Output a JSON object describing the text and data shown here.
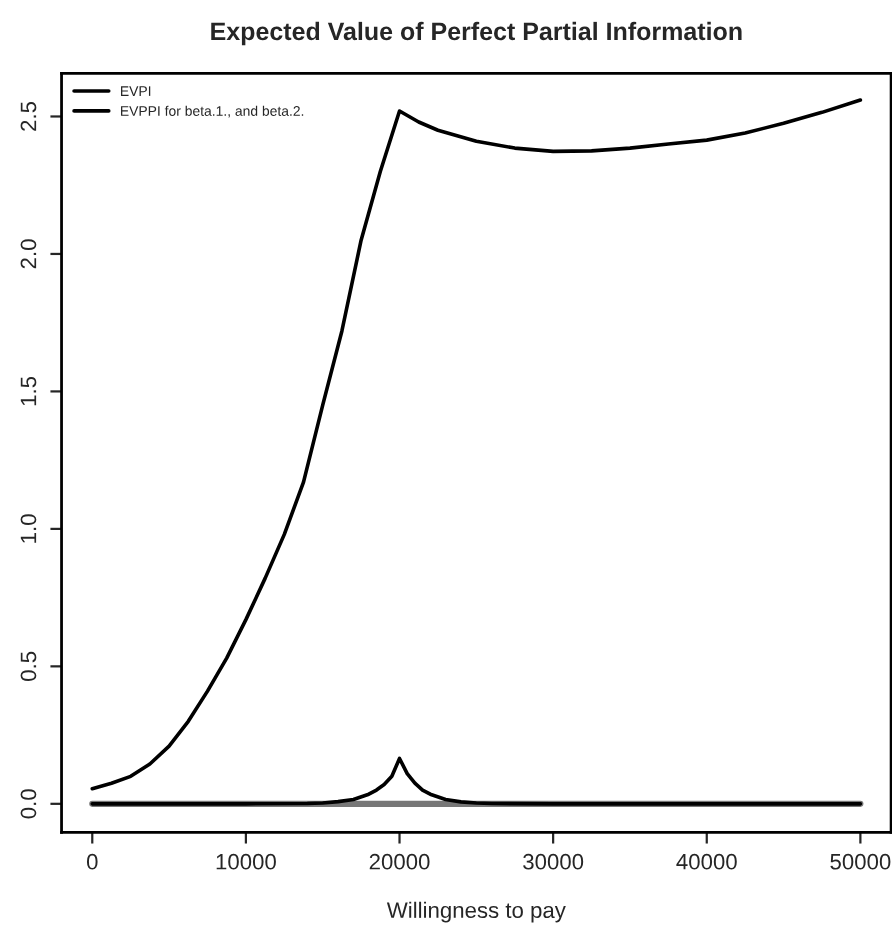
{
  "chart_data": {
    "type": "line",
    "title": "Expected Value of Perfect Partial Information",
    "xlabel": "Willingness to pay",
    "xlim": [
      -2000,
      52000
    ],
    "xticks": [
      0,
      10000,
      20000,
      30000,
      40000,
      50000
    ],
    "ylim": [
      -0.104,
      2.657
    ],
    "yticks": [
      {
        "value": 0,
        "label": "0.0"
      },
      {
        "value": 0.5,
        "label": "0.5"
      },
      {
        "value": 1,
        "label": "1.0"
      },
      {
        "value": 1.5,
        "label": "1.5"
      },
      {
        "value": 2,
        "label": "2.0"
      },
      {
        "value": 2.5,
        "label": "2.5"
      }
    ],
    "legend": "top left",
    "grid": false,
    "marker": "none",
    "line_style": "solid",
    "series": [
      {
        "name": "EVPI",
        "color": "#000000",
        "x": [
          0,
          1250,
          2500,
          3750,
          5000,
          6250,
          7500,
          8750,
          10000,
          11250,
          12500,
          13750,
          15000,
          16250,
          17500,
          18750,
          20000,
          21250,
          22500,
          25000,
          27500,
          30000,
          32500,
          35000,
          37500,
          40000,
          42500,
          45000,
          47500,
          50000
        ],
        "values": [
          0.055,
          0.075,
          0.1,
          0.145,
          0.21,
          0.3,
          0.41,
          0.53,
          0.67,
          0.82,
          0.98,
          1.17,
          1.45,
          1.72,
          2.05,
          2.3,
          2.52,
          2.48,
          2.45,
          2.41,
          2.385,
          2.373,
          2.375,
          2.385,
          2.4,
          2.414,
          2.44,
          2.475,
          2.515,
          2.56
        ]
      },
      {
        "name": "EVPPI for beta.1., and beta.2.",
        "color": "#000000",
        "x": [
          0,
          10000,
          14000,
          15000,
          16000,
          17000,
          18000,
          18500,
          19000,
          19500,
          20000,
          20500,
          21000,
          21500,
          22000,
          23000,
          24000,
          25000,
          26000,
          30000,
          40000,
          50000
        ],
        "values": [
          0,
          0,
          0.001,
          0.003,
          0.008,
          0.016,
          0.035,
          0.05,
          0.07,
          0.1,
          0.165,
          0.11,
          0.075,
          0.05,
          0.035,
          0.016,
          0.007,
          0.003,
          0.001,
          0,
          0,
          0
        ]
      },
      {
        "color": "#777777",
        "x": [
          0,
          50000
        ],
        "values": [
          0,
          0
        ]
      }
    ]
  }
}
